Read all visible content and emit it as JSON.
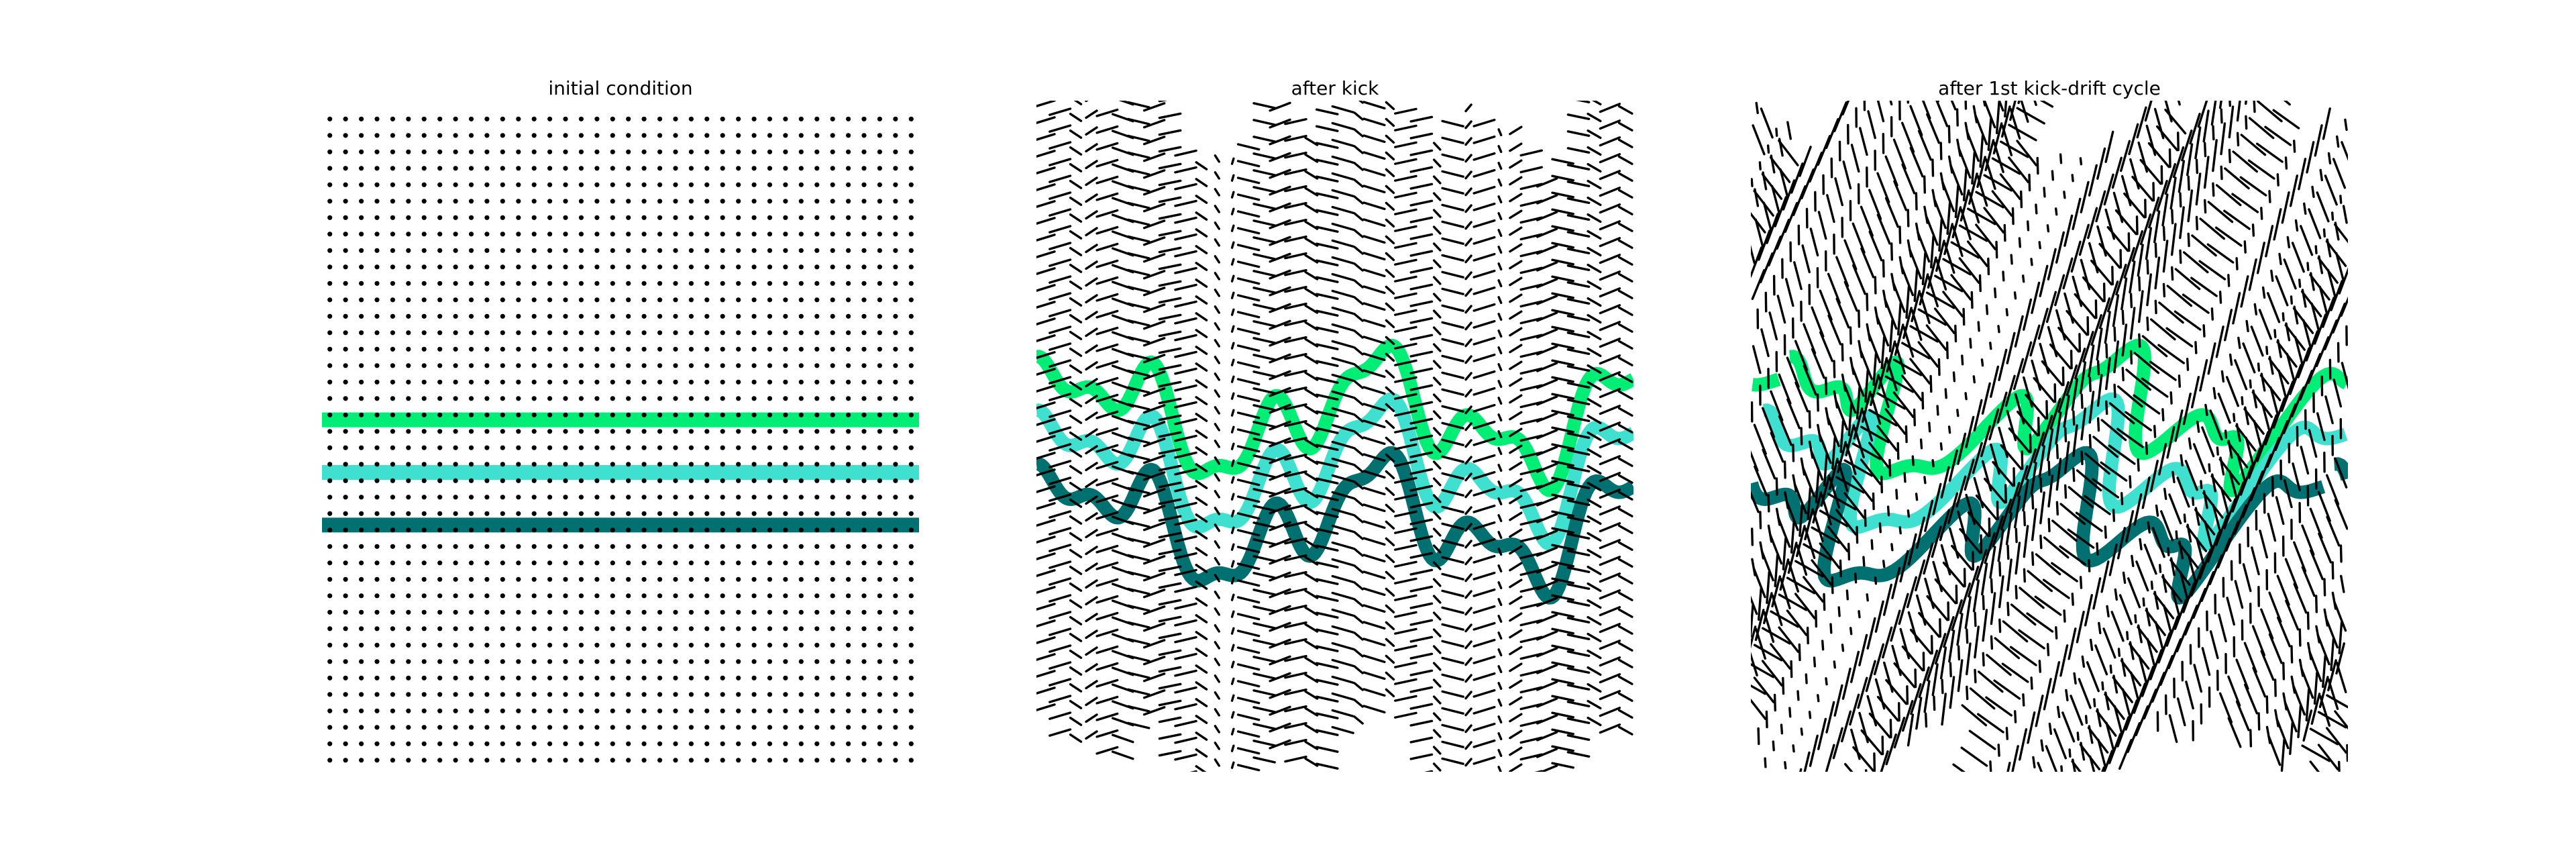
{
  "figure": {
    "background": "#ffffff"
  },
  "chart_data": [
    {
      "type": "scatter",
      "title": "initial condition",
      "description_stage": "initial",
      "grid_points": {
        "columns": 38,
        "rows": 40
      },
      "axes_visible": false,
      "bands": [
        {
          "color": "#00ee76",
          "level": 0.47
        },
        {
          "color": "#40e0d0",
          "level": 0.55
        },
        {
          "color": "#007070",
          "level": 0.63
        }
      ]
    },
    {
      "type": "scatter",
      "title": "after kick",
      "description_stage": "kick",
      "grid_points": {
        "columns": 38,
        "rows": 40
      },
      "axes_visible": false,
      "bands": [
        {
          "color": "#00ee76",
          "level": 0.47
        },
        {
          "color": "#40e0d0",
          "level": 0.55
        },
        {
          "color": "#007070",
          "level": 0.63
        }
      ]
    },
    {
      "type": "scatter",
      "title": "after 1st kick-drift cycle",
      "description_stage": "cycle",
      "grid_points": {
        "columns": 38,
        "rows": 40
      },
      "axes_visible": false,
      "bands": [
        {
          "color": "#00ee76",
          "level": 0.47
        },
        {
          "color": "#40e0d0",
          "level": 0.55
        },
        {
          "color": "#007070",
          "level": 0.63
        }
      ]
    }
  ]
}
